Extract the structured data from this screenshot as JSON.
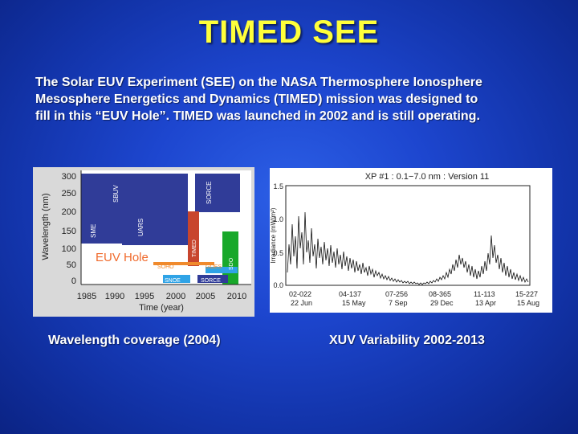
{
  "slide": {
    "title": "TIMED SEE",
    "intro_lines": [
      "The Solar EUV Experiment (SEE) on the NASA Thermosphere Ionosphere",
      "Mesosphere Energetics and Dynamics (TIMED) mission was designed to",
      "fill in this “EUV Hole”.  TIMED was launched in 2002 and is still operating."
    ]
  },
  "left_figure": {
    "caption": "Wavelength coverage (2004)",
    "ylabel": "Wavelength (nm)",
    "xlabel": "Time (year)",
    "hole_label": "EUV Hole",
    "y_ticks": [
      "0",
      "50",
      "100",
      "150",
      "200",
      "250",
      "300"
    ],
    "x_ticks": [
      "1985",
      "1990",
      "1995",
      "2000",
      "2005",
      "2010"
    ],
    "missions": [
      "SBUV",
      "SME",
      "UARS",
      "SORCE",
      "TIMED",
      "SDO",
      "SOHO",
      "GOES",
      "SNOE",
      "SORCE"
    ]
  },
  "right_figure": {
    "caption": "XUV Variability 2002-2013",
    "title": "XP #1 : 0.1−7.0 nm : Version 11",
    "ylabel": "Irradiance (mW/m²)",
    "y_ticks": [
      "0.0",
      "0.5",
      "1.0",
      "1.5"
    ],
    "x_ticks_top": [
      "02-022",
      "04-137",
      "07-256",
      "08-365",
      "11-113",
      "15-227"
    ],
    "x_ticks_bottom": [
      "22 Jun",
      "15 May",
      "7 Sep",
      "29 Dec",
      "13 Apr",
      "15 Aug"
    ]
  },
  "colors": {
    "title": "#ffff3a",
    "navy": "#303c98",
    "red": "#c8452d",
    "green": "#18a82a",
    "blue": "#2fa3e6",
    "orange": "#f08a2c"
  }
}
